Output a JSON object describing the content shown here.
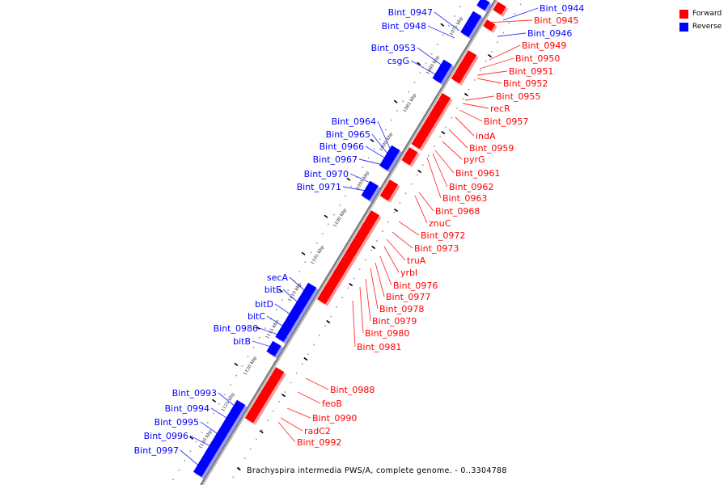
{
  "legend": {
    "items": [
      {
        "label": "Forward",
        "color": "#ff0000"
      },
      {
        "label": "Reverse",
        "color": "#0000ff"
      }
    ]
  },
  "caption": "Brachyspira intermedia PWS/A, complete genome. - 0..3304788",
  "ticks": [
    "1075 kbp",
    "1080 kbp",
    "1085 kbp",
    "1090 kbp",
    "1095 kbp",
    "1100 kbp",
    "1105 kbp",
    "1110 kbp",
    "1115 kbp",
    "1120 kbp",
    "1125 kbp",
    "1130 kbp"
  ],
  "right_labels": [
    {
      "name": "Bint_0944",
      "strand": "reverse"
    },
    {
      "name": "Bint_0945",
      "strand": "forward"
    },
    {
      "name": "Bint_0946",
      "strand": "reverse"
    },
    {
      "name": "Bint_0949",
      "strand": "forward"
    },
    {
      "name": "Bint_0950",
      "strand": "forward"
    },
    {
      "name": "Bint_0951",
      "strand": "forward"
    },
    {
      "name": "Bint_0952",
      "strand": "forward"
    },
    {
      "name": "Bint_0955",
      "strand": "forward"
    },
    {
      "name": "recR",
      "strand": "forward"
    },
    {
      "name": "Bint_0957",
      "strand": "forward"
    },
    {
      "name": "indA",
      "strand": "forward"
    },
    {
      "name": "Bint_0959",
      "strand": "forward"
    },
    {
      "name": "pyrG",
      "strand": "forward"
    },
    {
      "name": "Bint_0961",
      "strand": "forward"
    },
    {
      "name": "Bint_0962",
      "strand": "forward"
    },
    {
      "name": "Bint_0963",
      "strand": "forward"
    },
    {
      "name": "Bint_0968",
      "strand": "forward"
    },
    {
      "name": "znuC",
      "strand": "forward"
    },
    {
      "name": "Bint_0972",
      "strand": "forward"
    },
    {
      "name": "Bint_0973",
      "strand": "forward"
    },
    {
      "name": "truA",
      "strand": "forward"
    },
    {
      "name": "yrbI",
      "strand": "forward"
    },
    {
      "name": "Bint_0976",
      "strand": "forward"
    },
    {
      "name": "Bint_0977",
      "strand": "forward"
    },
    {
      "name": "Bint_0978",
      "strand": "forward"
    },
    {
      "name": "Bint_0979",
      "strand": "forward"
    },
    {
      "name": "Bint_0980",
      "strand": "forward"
    },
    {
      "name": "Bint_0981",
      "strand": "forward"
    },
    {
      "name": "Bint_0988",
      "strand": "forward"
    },
    {
      "name": "feoB",
      "strand": "forward"
    },
    {
      "name": "Bint_0990",
      "strand": "forward"
    },
    {
      "name": "radC2",
      "strand": "forward"
    },
    {
      "name": "Bint_0992",
      "strand": "forward"
    }
  ],
  "left_labels": [
    {
      "name": "Bint_0947",
      "strand": "reverse"
    },
    {
      "name": "Bint_0948",
      "strand": "reverse"
    },
    {
      "name": "Bint_0953",
      "strand": "reverse"
    },
    {
      "name": "csgG",
      "strand": "reverse"
    },
    {
      "name": "Bint_0964",
      "strand": "reverse"
    },
    {
      "name": "Bint_0965",
      "strand": "reverse"
    },
    {
      "name": "Bint_0966",
      "strand": "reverse"
    },
    {
      "name": "Bint_0967",
      "strand": "reverse"
    },
    {
      "name": "Bint_0970",
      "strand": "reverse"
    },
    {
      "name": "Bint_0971",
      "strand": "reverse"
    },
    {
      "name": "secA",
      "strand": "reverse"
    },
    {
      "name": "bitE",
      "strand": "reverse"
    },
    {
      "name": "bitD",
      "strand": "reverse"
    },
    {
      "name": "bitC",
      "strand": "reverse"
    },
    {
      "name": "Bint_0986",
      "strand": "reverse"
    },
    {
      "name": "bitB",
      "strand": "reverse"
    },
    {
      "name": "Bint_0993",
      "strand": "reverse"
    },
    {
      "name": "Bint_0994",
      "strand": "reverse"
    },
    {
      "name": "Bint_0995",
      "strand": "reverse"
    },
    {
      "name": "Bint_0996",
      "strand": "reverse"
    },
    {
      "name": "Bint_0997",
      "strand": "reverse"
    }
  ]
}
